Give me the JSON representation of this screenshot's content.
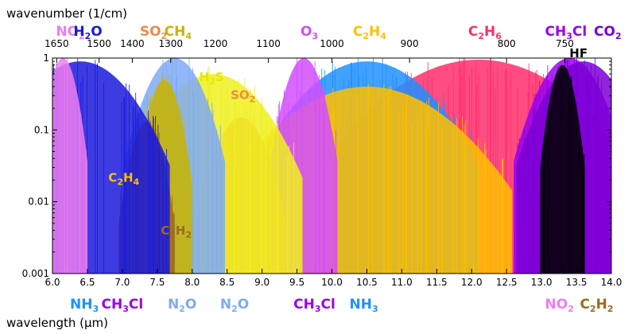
{
  "chart_data": {
    "type": "area",
    "xlabel": "wavelength (µm)",
    "x2label": "wavenumber (1/cm)",
    "ylabel": "",
    "xlim": [
      6.0,
      14.0
    ],
    "ylim": [
      0.001,
      1
    ],
    "yscale": "log",
    "x_ticks": [
      "6.0",
      "6.5",
      "7.0",
      "7.5",
      "8.0",
      "8.5",
      "9.0",
      "9.5",
      "10.0",
      "10.5",
      "11.0",
      "11.5",
      "12.0",
      "12.5",
      "13.0",
      "13.5",
      "14.0"
    ],
    "y_ticks": [
      "1",
      "0.1",
      "0.01",
      "0.001"
    ],
    "top_ticks": [
      "1650",
      "1500",
      "1400",
      "1300",
      "1200",
      "1100",
      "1000",
      "900",
      "800",
      "750"
    ],
    "series": [
      {
        "name": "C2H6",
        "color": "#ff2d6b",
        "center": 12.1,
        "width": 1.4,
        "peak": 0.95
      },
      {
        "name": "CH3Cl",
        "color": "#9b00f0",
        "center": 13.4,
        "width": 0.5,
        "peak": 1.0
      },
      {
        "name": "CO2",
        "color": "#7a00d6",
        "center": 13.6,
        "width": 0.6,
        "peak": 0.9
      },
      {
        "name": "NH3",
        "color": "#1e90ff",
        "center": 10.5,
        "width": 1.0,
        "peak": 0.9
      },
      {
        "name": "C2H4",
        "color": "#ffc000",
        "center": 10.5,
        "width": 1.3,
        "peak": 0.4
      },
      {
        "name": "O3",
        "color": "#d24dff",
        "center": 9.6,
        "width": 0.3,
        "peak": 1.0
      },
      {
        "name": "SO2",
        "color": "#f08a4b",
        "center": 8.7,
        "width": 0.4,
        "peak": 0.15
      },
      {
        "name": "H2S",
        "color": "#f0f020",
        "center": 8.3,
        "width": 0.8,
        "peak": 0.6
      },
      {
        "name": "N2O",
        "color": "#7faaf5",
        "center": 7.75,
        "width": 0.45,
        "peak": 1.0
      },
      {
        "name": "CH4",
        "color": "#c8b400",
        "center": 7.6,
        "width": 0.25,
        "peak": 0.5
      },
      {
        "name": "C2H2",
        "color": "#9c6a1e",
        "center": 7.35,
        "width": 0.25,
        "peak": 0.13
      },
      {
        "name": "H2O",
        "color": "#1a1adc",
        "center": 6.4,
        "width": 0.8,
        "peak": 0.9
      },
      {
        "name": "NO2",
        "color": "#f07cf0",
        "center": 6.15,
        "width": 0.22,
        "peak": 1.0
      },
      {
        "name": "HF",
        "color": "#000000",
        "center": 13.3,
        "width": 0.2,
        "peak": 0.8
      }
    ],
    "labels": {
      "top": [
        {
          "text": "NO",
          "sub": "2",
          "color": "#f07cf0",
          "x": 6.05
        },
        {
          "text": "H",
          "sub": "2",
          "tail": "O",
          "color": "#1a1adc",
          "x": 6.3
        },
        {
          "text": "SO",
          "sub": "2",
          "color": "#f08a4b",
          "x": 7.25
        },
        {
          "text": "CH",
          "sub": "4",
          "color": "#c8b400",
          "x": 7.6
        },
        {
          "text": "O",
          "sub": "3",
          "color": "#d24dff",
          "x": 9.55
        },
        {
          "text": "C",
          "sub": "2",
          "tail": "H",
          "sub2": "4",
          "color": "#ffc000",
          "x": 10.3
        },
        {
          "text": "C",
          "sub": "2",
          "tail": "H",
          "sub2": "6",
          "color": "#ff2d6b",
          "x": 11.95
        },
        {
          "text": "CH",
          "sub": "3",
          "tail": "Cl",
          "color": "#9b00f0",
          "x": 13.05
        },
        {
          "text": "CO",
          "sub": "2",
          "color": "#7a00d6",
          "x": 13.75
        },
        {
          "text": "HF",
          "color": "#000000",
          "x": 13.4,
          "row": "upper"
        }
      ],
      "inner": [
        {
          "text": "H",
          "sub": "2",
          "tail": "S",
          "color": "#e6e600",
          "x": 8.1,
          "y": 0.48
        },
        {
          "text": "SO",
          "sub": "2",
          "color": "#f08a4b",
          "x": 8.55,
          "y": 0.27
        },
        {
          "text": "C",
          "sub": "2",
          "tail": "H",
          "sub2": "4",
          "color": "#ffc000",
          "x": 6.8,
          "y": 0.019
        },
        {
          "text": "C",
          "sub": "2",
          "tail": "H",
          "sub2": "2",
          "color": "#9c6a1e",
          "x": 7.55,
          "y": 0.0035
        }
      ],
      "bottom": [
        {
          "text": "NH",
          "sub": "3",
          "color": "#1e90ff",
          "x": 6.25
        },
        {
          "text": "CH",
          "sub": "3",
          "tail": "Cl",
          "color": "#9b00f0",
          "x": 6.7
        },
        {
          "text": "N",
          "sub": "2",
          "tail": "O",
          "color": "#7faaf5",
          "x": 7.65
        },
        {
          "text": "N",
          "sub": "2",
          "tail": "O",
          "color": "#7faaf5",
          "x": 8.4
        },
        {
          "text": "CH",
          "sub": "3",
          "tail": "Cl",
          "color": "#9b00f0",
          "x": 9.45
        },
        {
          "text": "NH",
          "sub": "3",
          "color": "#1e90ff",
          "x": 10.25
        },
        {
          "text": "NO",
          "sub": "2",
          "color": "#f07cf0",
          "x": 13.05
        },
        {
          "text": "C",
          "sub": "2",
          "tail": "H",
          "sub2": "2",
          "color": "#9c6a1e",
          "x": 13.55
        }
      ]
    }
  }
}
